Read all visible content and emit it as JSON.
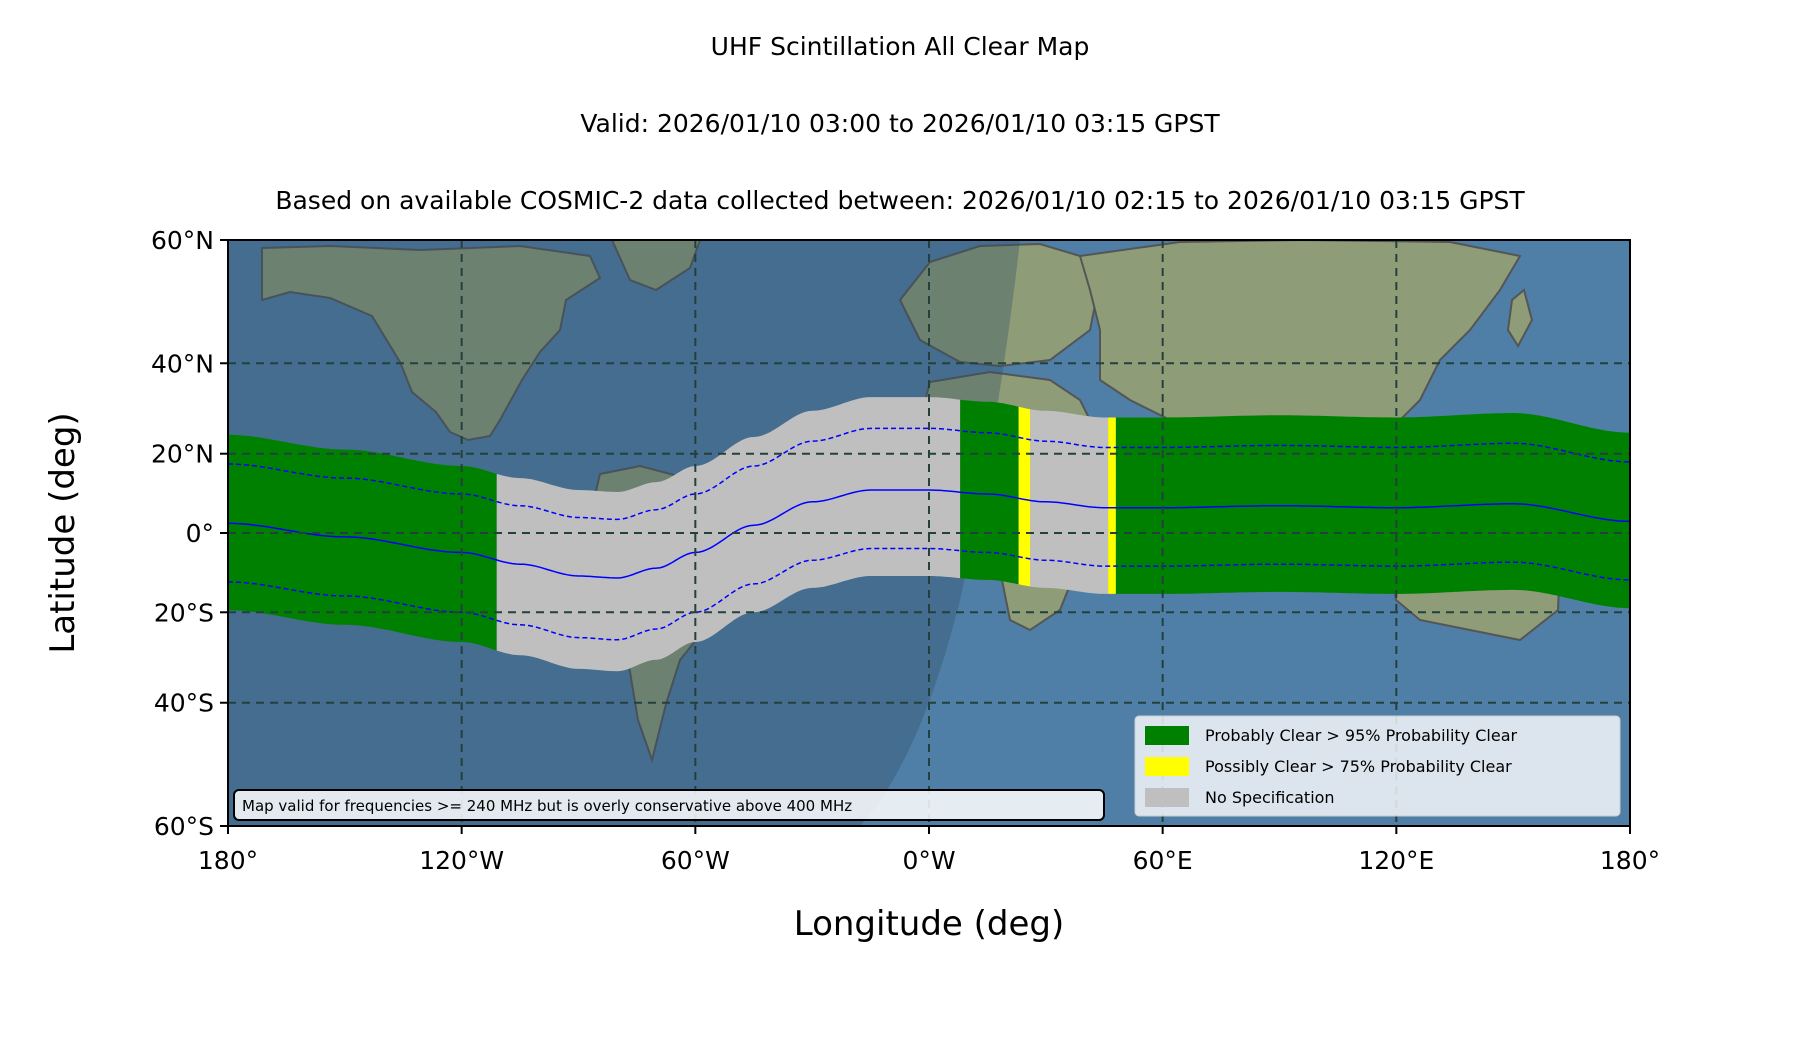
{
  "titles": {
    "line1": "UHF Scintillation All Clear Map",
    "line2": "Valid: 2026/01/10 03:00 to 2026/01/10 03:15 GPST",
    "line3": "Based on available COSMIC-2 data collected between: 2026/01/10 02:15 to 2026/01/10 03:15 GPST"
  },
  "axes": {
    "xlabel": "Longitude (deg)",
    "ylabel": "Latitude (deg)",
    "xlim": [
      -180,
      180
    ],
    "ylim": [
      -60,
      60
    ],
    "xticks": [
      {
        "value": -180,
        "label": "180°"
      },
      {
        "value": -120,
        "label": "120°W"
      },
      {
        "value": -60,
        "label": "60°W"
      },
      {
        "value": 0,
        "label": "0°W"
      },
      {
        "value": 60,
        "label": "60°E"
      },
      {
        "value": 120,
        "label": "120°E"
      },
      {
        "value": 180,
        "label": "180°"
      }
    ],
    "yticks": [
      {
        "value": 60,
        "label": "60°N"
      },
      {
        "value": 40,
        "label": "40°N"
      },
      {
        "value": 20,
        "label": "20°N"
      },
      {
        "value": 0,
        "label": "0°"
      },
      {
        "value": -20,
        "label": "20°S"
      },
      {
        "value": -40,
        "label": "40°S"
      },
      {
        "value": -60,
        "label": "60°S"
      }
    ],
    "grid": true,
    "projection": "mercator"
  },
  "legend": {
    "placement": "lower-right",
    "items": [
      {
        "label": "Probably Clear > 95% Probability Clear",
        "color": "#008000"
      },
      {
        "label": "Possibly Clear > 75% Probability Clear",
        "color": "#ffff00"
      },
      {
        "label": "No Specification",
        "color": "#bfbfbf"
      }
    ]
  },
  "note": "Map valid for frequencies >= 240 MHz but is overly conservative above 400 MHz",
  "colors": {
    "ocean": "#4f7fa6",
    "land": "#8e9d77",
    "night_shade": "#324d63",
    "grid": "#24403d",
    "band_center": "#0000ff",
    "coastline": "#555555"
  },
  "chart_data": {
    "type": "map",
    "center_line": {
      "lon": [
        -180,
        -150,
        -120,
        -105,
        -90,
        -80,
        -70,
        -60,
        -45,
        -30,
        -15,
        0,
        15,
        30,
        45,
        60,
        90,
        120,
        150,
        180
      ],
      "lat": [
        2.5,
        -1,
        -5,
        -8,
        -11,
        -11.5,
        -9,
        -5,
        2,
        8,
        11,
        11,
        10,
        8,
        6.5,
        6.5,
        7,
        6.5,
        7.5,
        3
      ]
    },
    "upper_dashed_offset_deg": 15,
    "lower_dashed_offset_deg": -15,
    "band_halfwidth_deg": 22,
    "segments": [
      {
        "from_lon": -180,
        "to_lon": -111,
        "class": "Probably Clear > 95% Probability Clear"
      },
      {
        "from_lon": -111,
        "to_lon": 8,
        "class": "No Specification"
      },
      {
        "from_lon": 8,
        "to_lon": 23,
        "class": "Probably Clear > 95% Probability Clear"
      },
      {
        "from_lon": 23,
        "to_lon": 26,
        "class": "Possibly Clear > 75% Probability Clear"
      },
      {
        "from_lon": 26,
        "to_lon": 46,
        "class": "No Specification"
      },
      {
        "from_lon": 46,
        "to_lon": 48,
        "class": "Possibly Clear > 75% Probability Clear"
      },
      {
        "from_lon": 48,
        "to_lon": 180,
        "class": "Probably Clear > 95% Probability Clear"
      }
    ]
  }
}
